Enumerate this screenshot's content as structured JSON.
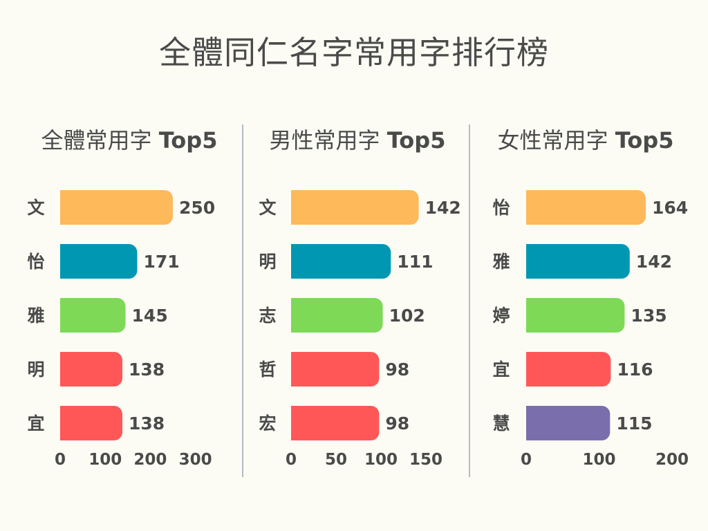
{
  "title": "全體同仁名字常用字排行榜",
  "colors": [
    "#fdb95a",
    "#0097b2",
    "#7ed957",
    "#ff5757",
    "#7b6ead"
  ],
  "chart_data": [
    {
      "type": "bar",
      "orientation": "horizontal",
      "title": "全體常用字",
      "title_suffix": "Top5",
      "categories": [
        "文",
        "怡",
        "雅",
        "明",
        "宜"
      ],
      "values": [
        250,
        171,
        145,
        138,
        138
      ],
      "bar_colors": [
        "#fdb95a",
        "#0097b2",
        "#7ed957",
        "#ff5757",
        "#ff5757"
      ],
      "xlim": [
        0,
        300
      ],
      "xticks": [
        0,
        100,
        200,
        300
      ],
      "grid": false,
      "legend": "none"
    },
    {
      "type": "bar",
      "orientation": "horizontal",
      "title": "男性常用字",
      "title_suffix": "Top5",
      "categories": [
        "文",
        "明",
        "志",
        "哲",
        "宏"
      ],
      "values": [
        142,
        111,
        102,
        98,
        98
      ],
      "bar_colors": [
        "#fdb95a",
        "#0097b2",
        "#7ed957",
        "#ff5757",
        "#ff5757"
      ],
      "xlim": [
        0,
        150
      ],
      "xticks": [
        0,
        50,
        100,
        150
      ],
      "grid": false,
      "legend": "none"
    },
    {
      "type": "bar",
      "orientation": "horizontal",
      "title": "女性常用字",
      "title_suffix": "Top5",
      "categories": [
        "怡",
        "雅",
        "婷",
        "宜",
        "慧"
      ],
      "values": [
        164,
        142,
        135,
        116,
        115
      ],
      "bar_colors": [
        "#fdb95a",
        "#0097b2",
        "#7ed957",
        "#ff5757",
        "#7b6ead"
      ],
      "xlim": [
        0,
        200
      ],
      "xticks": [
        0,
        100,
        200
      ],
      "grid": false,
      "legend": "none"
    }
  ]
}
